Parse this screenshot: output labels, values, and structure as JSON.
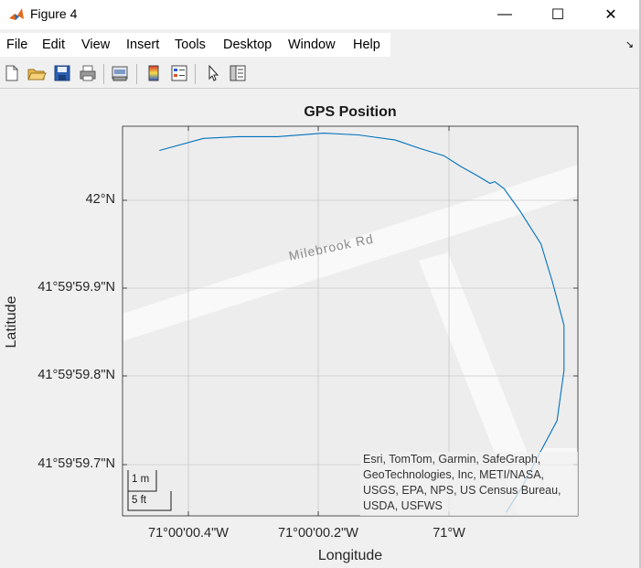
{
  "window": {
    "title": "Figure 4",
    "minimize": "—",
    "maximize": "☐",
    "close": "✕"
  },
  "menu": [
    "File",
    "Edit",
    "View",
    "Insert",
    "Tools",
    "Desktop",
    "Window",
    "Help"
  ],
  "toolbar": [
    "new-figure",
    "open-file",
    "save",
    "print",
    "print-preview",
    "insert-colorbar",
    "insert-legend",
    "edit-plot",
    "property-inspector"
  ],
  "plot": {
    "title": "GPS Position",
    "xlabel": "Longitude",
    "ylabel": "Latitude",
    "yticks": [
      "42°N",
      "41°59'59.9\"N",
      "41°59'59.8\"N",
      "41°59'59.7\"N"
    ],
    "xticks": [
      "71°00'00.4\"W",
      "71°00'00.2\"W",
      "71°W"
    ],
    "road_name": "Milebrook Rd",
    "scalebar": {
      "metric": "1 m",
      "imperial": "5 ft"
    },
    "attribution": "Esri, TomTom, Garmin, SafeGraph, GeoTechnologies, Inc, METI/NASA, USGS, EPA, NPS, US Census Bureau, USDA, USFWS",
    "line_color": "#0072bd"
  },
  "chart_data": {
    "type": "line",
    "title": "GPS Position",
    "xlabel": "Longitude",
    "ylabel": "Latitude",
    "series": [
      {
        "lon": [
          -71.000146,
          -71.000127,
          -71.000112,
          -71.000095,
          -71.000075,
          -71.00006,
          -71.000044,
          -71.000033,
          -71.000023,
          -71.000016,
          -71.000008,
          -71.000003,
          -71.000001,
          -70.999997,
          -70.99999,
          -70.999981,
          -70.999976,
          -70.999971,
          -70.999971,
          -70.999974,
          -70.999982,
          -70.999989,
          -70.999996
        ],
        "lat": [
          42.0000164,
          42.0000171,
          42.0000172,
          42.0000172,
          42.0000174,
          42.0000173,
          42.000017,
          42.0000165,
          42.0000161,
          42.0000155,
          42.0000149,
          42.0000145,
          42.0000146,
          42.0000142,
          42.0000129,
          42.000011,
          42.0000088,
          42.0000063,
          42.0000037,
          42.0000008,
          41.9999988,
          41.999997,
          41.9999955
        ]
      }
    ],
    "xlim": [
      -71.000162,
      -70.999965
    ],
    "ylim": [
      41.9999953,
      42.0000178
    ],
    "grid": true
  }
}
